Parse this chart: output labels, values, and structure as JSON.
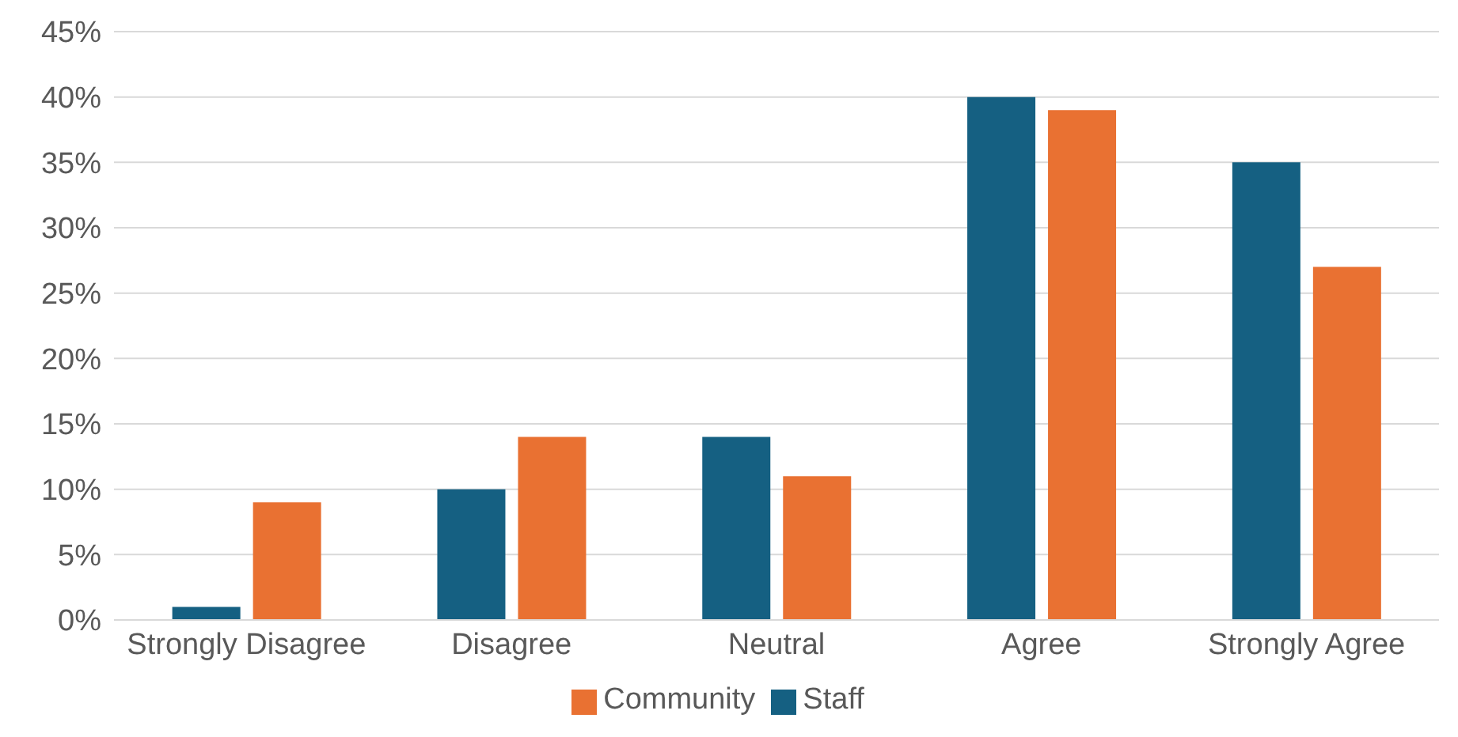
{
  "chart_data": {
    "type": "bar",
    "categories": [
      "Strongly Disagree",
      "Disagree",
      "Neutral",
      "Agree",
      "Strongly Agree"
    ],
    "series": [
      {
        "name": "Staff",
        "color": "#156082",
        "values": [
          1,
          10,
          14,
          40,
          35
        ]
      },
      {
        "name": "Community",
        "color": "#e97132",
        "values": [
          9,
          14,
          11,
          39,
          27
        ]
      }
    ],
    "ylim": [
      0,
      45
    ],
    "yticks": [
      {
        "value": 0,
        "label": "0%"
      },
      {
        "value": 5,
        "label": "5%"
      },
      {
        "value": 10,
        "label": "10%"
      },
      {
        "value": 15,
        "label": "15%"
      },
      {
        "value": 20,
        "label": "20%"
      },
      {
        "value": 25,
        "label": "25%"
      },
      {
        "value": 30,
        "label": "30%"
      },
      {
        "value": 35,
        "label": "35%"
      },
      {
        "value": 40,
        "label": "40%"
      },
      {
        "value": 45,
        "label": "45%"
      }
    ],
    "grid": "y",
    "legend": "bottom"
  }
}
